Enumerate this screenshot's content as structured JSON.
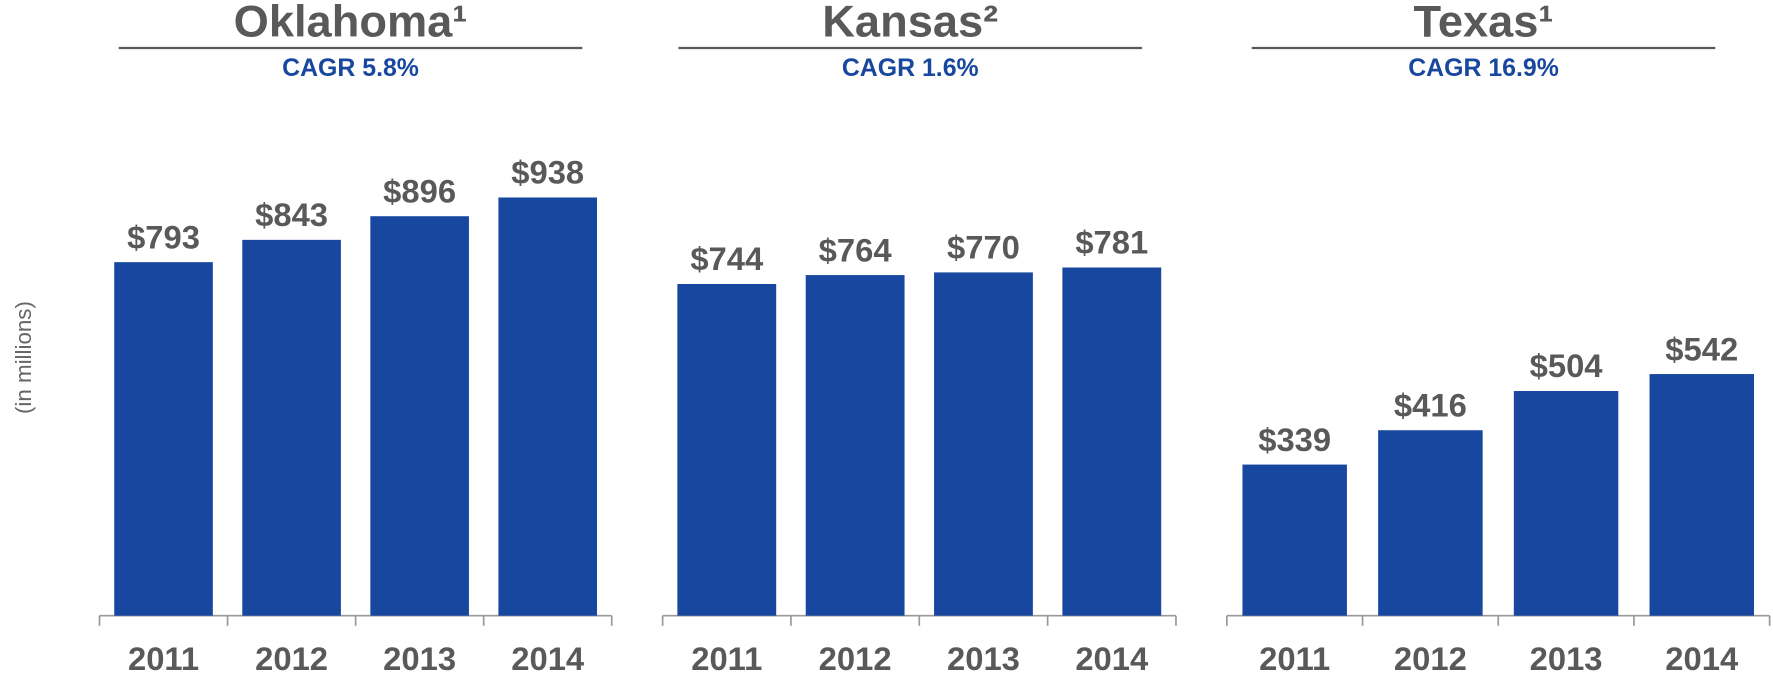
{
  "y_label": "(in millions)",
  "chart_data": [
    {
      "type": "bar",
      "title": "Oklahoma¹",
      "subtitle": "CAGR 5.8%",
      "categories": [
        "2011",
        "2012",
        "2013",
        "2014"
      ],
      "values": [
        793,
        843,
        896,
        938
      ],
      "value_labels": [
        "$793",
        "$843",
        "$896",
        "$938"
      ],
      "color": "#17479e",
      "ylim": [
        0,
        1000
      ]
    },
    {
      "type": "bar",
      "title": "Kansas²",
      "subtitle": "CAGR 1.6%",
      "categories": [
        "2011",
        "2012",
        "2013",
        "2014"
      ],
      "values": [
        744,
        764,
        770,
        781
      ],
      "value_labels": [
        "$744",
        "$764",
        "$770",
        "$781"
      ],
      "color": "#17479e",
      "ylim": [
        0,
        1000
      ]
    },
    {
      "type": "bar",
      "title": "Texas¹",
      "subtitle": "CAGR 16.9%",
      "categories": [
        "2011",
        "2012",
        "2013",
        "2014"
      ],
      "values": [
        339,
        416,
        504,
        542
      ],
      "value_labels": [
        "$339",
        "$416",
        "$504",
        "$542"
      ],
      "color": "#17479e",
      "ylim": [
        0,
        1000
      ]
    }
  ]
}
